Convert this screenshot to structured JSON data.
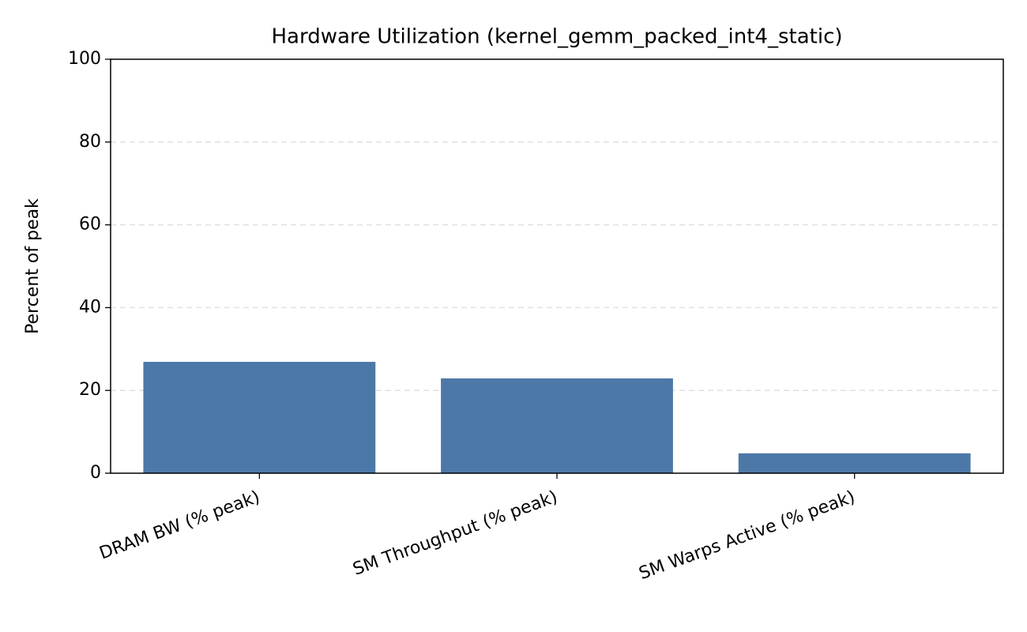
{
  "chart_data": {
    "type": "bar",
    "title": "Hardware Utilization (kernel_gemm_packed_int4_static)",
    "ylabel": "Percent of peak",
    "categories": [
      "DRAM BW (% peak)",
      "SM Throughput (% peak)",
      "SM Warps Active (% peak)"
    ],
    "values": [
      26.9,
      22.9,
      4.8
    ],
    "color": "#4c78a8",
    "ylim": [
      0,
      100
    ],
    "yticks": [
      0,
      20,
      40,
      60,
      80,
      100
    ],
    "grid": true
  }
}
